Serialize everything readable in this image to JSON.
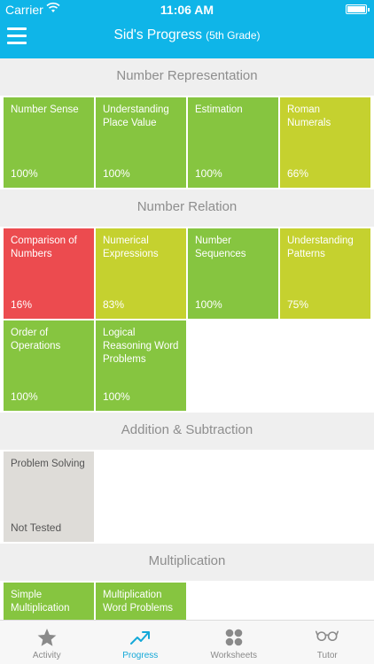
{
  "status": {
    "carrier": "Carrier",
    "time": "11:06 AM"
  },
  "header": {
    "title": "Sid's Progress",
    "subtitle": "(5th Grade)"
  },
  "sections": [
    {
      "title": "Number Representation",
      "tiles": [
        {
          "name": "Number Sense",
          "score": "100%",
          "color": "green"
        },
        {
          "name": "Understanding Place Value",
          "score": "100%",
          "color": "green"
        },
        {
          "name": "Estimation",
          "score": "100%",
          "color": "green"
        },
        {
          "name": "Roman Numerals",
          "score": "66%",
          "color": "yellow"
        }
      ]
    },
    {
      "title": "Number Relation",
      "tiles": [
        {
          "name": "Comparison of Numbers",
          "score": "16%",
          "color": "red"
        },
        {
          "name": "Numerical Expressions",
          "score": "83%",
          "color": "yellow"
        },
        {
          "name": "Number Sequences",
          "score": "100%",
          "color": "green"
        },
        {
          "name": "Understanding Patterns",
          "score": "75%",
          "color": "yellow"
        },
        {
          "name": "Order of Operations",
          "score": "100%",
          "color": "green"
        },
        {
          "name": "Logical Reasoning Word Problems",
          "score": "100%",
          "color": "green"
        }
      ]
    },
    {
      "title": "Addition & Subtraction",
      "tiles": [
        {
          "name": "Problem Solving",
          "score": "Not Tested",
          "color": "gray"
        }
      ]
    },
    {
      "title": "Multiplication",
      "tiles": [
        {
          "name": "Simple Multiplication",
          "score": "",
          "color": "green"
        },
        {
          "name": "Multiplication Word Problems",
          "score": "",
          "color": "green"
        }
      ]
    }
  ],
  "tabs": [
    {
      "label": "Activity",
      "icon": "star-icon",
      "active": false
    },
    {
      "label": "Progress",
      "icon": "trend-up-icon",
      "active": true
    },
    {
      "label": "Worksheets",
      "icon": "four-dots-icon",
      "active": false
    },
    {
      "label": "Tutor",
      "icon": "glasses-icon",
      "active": false
    }
  ],
  "colors": {
    "header": "#0fb5e8",
    "green": "#86c540",
    "yellow": "#c5d12f",
    "red": "#ec4b4f",
    "gray": "#dedcd8",
    "tab_active": "#14a8d8"
  }
}
